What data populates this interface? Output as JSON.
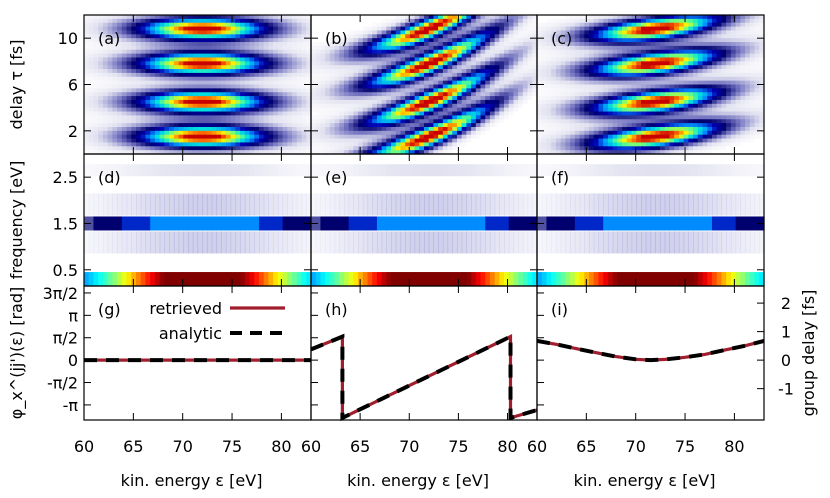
{
  "chart_data": {
    "type": "heatmap",
    "x_axis": {
      "label": "kin. energy ε [eV]",
      "range": [
        60,
        83
      ],
      "ticks": [
        60,
        65,
        70,
        75,
        80
      ],
      "tick_labels": [
        "60",
        "65",
        "70",
        "75",
        "80"
      ]
    },
    "panels": [
      {
        "id": "(a)",
        "type": "heatmap",
        "row": 0,
        "col": 0,
        "delay_tilt": 0,
        "freq_phase": 0
      },
      {
        "id": "(b)",
        "type": "heatmap",
        "row": 0,
        "col": 1,
        "delay_tilt": 1,
        "freq_phase": 0
      },
      {
        "id": "(c)",
        "type": "heatmap",
        "row": 0,
        "col": 2,
        "delay_tilt": 0.3,
        "freq_phase": 0
      },
      {
        "id": "(d)",
        "type": "heatmap",
        "row": 1,
        "col": 0
      },
      {
        "id": "(e)",
        "type": "heatmap",
        "row": 1,
        "col": 1
      },
      {
        "id": "(f)",
        "type": "heatmap",
        "row": 1,
        "col": 2
      },
      {
        "id": "(g)",
        "type": "line",
        "row": 2,
        "col": 0
      },
      {
        "id": "(h)",
        "type": "line",
        "row": 2,
        "col": 1
      },
      {
        "id": "(i)",
        "type": "line",
        "row": 2,
        "col": 2
      }
    ],
    "row_a": {
      "ylabel": "delay τ [fs]",
      "ylim": [
        0,
        12
      ],
      "yticks": [
        2,
        6,
        10
      ],
      "ytick_labels": [
        "2",
        "6",
        "10"
      ],
      "peak_delays": [
        1.5,
        4.5,
        7.8,
        10.8
      ],
      "peak_energy": 72
    },
    "row_d": {
      "ylabel": "frequency [eV]",
      "ylim": [
        0.15,
        3.0
      ],
      "yticks": [
        0.5,
        1.5,
        2.5
      ],
      "ytick_labels": [
        "0.5",
        "1.5",
        "2.5"
      ],
      "bands": [
        {
          "freq": 0.3,
          "intensity": 1.0
        },
        {
          "freq": 1.5,
          "intensity": 0.55
        },
        {
          "freq": 2.65,
          "intensity": 0.08
        }
      ]
    },
    "row_g": {
      "ylabel": "φ_x^(jj')(ε) [rad]",
      "ylim": [
        -4.2,
        5.2
      ],
      "yticks": [
        -3.1416,
        -1.5708,
        0,
        1.5708,
        3.1416,
        4.7124
      ],
      "ytick_labels": [
        "-π",
        "-π/2",
        "0",
        "π/2",
        "π",
        "3π/2"
      ],
      "y2label": "group delay [fs]",
      "y2ticks": [
        -1,
        0,
        1,
        2
      ],
      "y2tick_labels": [
        "-1",
        "0",
        "1",
        "2"
      ],
      "y2_scale": 0.5,
      "legend": [
        {
          "label": "retrieved",
          "color": "#a01e2d",
          "style": "solid"
        },
        {
          "label": "analytic",
          "color": "#000000",
          "style": "dashed"
        }
      ],
      "series": {
        "g": {
          "x": [
            60,
            83
          ],
          "y": [
            0,
            0
          ]
        },
        "h": {
          "x": [
            60,
            63.2,
            63.2,
            80.3,
            80.3,
            83
          ],
          "y": [
            0.75,
            1.65,
            -4.05,
            1.65,
            -4.05,
            -3.5
          ]
        },
        "i": {
          "x": [
            60,
            62,
            64,
            66,
            68,
            70,
            71.5,
            73,
            75,
            77,
            79,
            81,
            83
          ],
          "y": [
            1.35,
            1.1,
            0.8,
            0.52,
            0.25,
            0.06,
            0.0,
            0.05,
            0.2,
            0.4,
            0.7,
            1.0,
            1.35
          ]
        }
      }
    }
  }
}
